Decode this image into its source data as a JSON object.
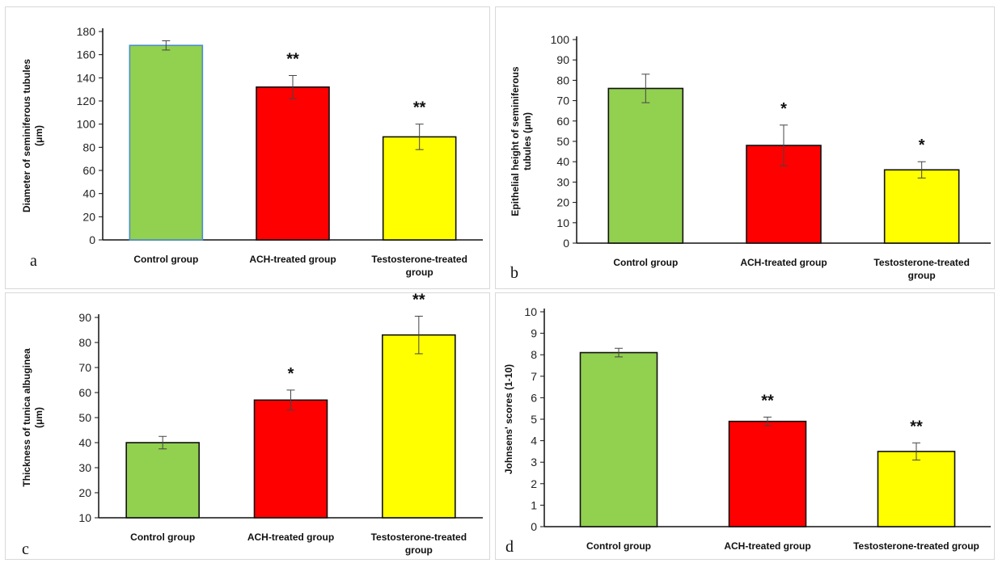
{
  "chart_data": [
    {
      "type": "bar",
      "panel_label": "a",
      "ylabel": [
        "Diameter of seminiferous tubules",
        "(μm)"
      ],
      "categories": [
        [
          "Control group"
        ],
        [
          "ACH-treated group"
        ],
        [
          "Testosterone-treated",
          "group"
        ]
      ],
      "values": [
        168,
        132,
        89
      ],
      "errors": [
        4,
        10,
        11
      ],
      "significance": [
        "",
        "**",
        "**"
      ],
      "colors": [
        "#92d050",
        "#ff0000",
        "#ffff00"
      ],
      "bar_border_colors": [
        "#4a8ec8",
        "#111111",
        "#111111"
      ],
      "ylim": [
        0,
        180
      ],
      "yticks": [
        0,
        20,
        40,
        60,
        80,
        100,
        120,
        140,
        160,
        180
      ],
      "grid": false
    },
    {
      "type": "bar",
      "panel_label": "b",
      "ylabel": [
        "Epithelial height of seminiferous",
        "tubules (μm)"
      ],
      "categories": [
        [
          "Control group"
        ],
        [
          "ACH-treated group"
        ],
        [
          "Testosterone-treated",
          "group"
        ]
      ],
      "values": [
        76,
        48,
        36
      ],
      "errors": [
        7,
        10,
        4
      ],
      "significance": [
        "",
        "*",
        "*"
      ],
      "colors": [
        "#92d050",
        "#ff0000",
        "#ffff00"
      ],
      "bar_border_colors": [
        "#111111",
        "#111111",
        "#111111"
      ],
      "ylim": [
        0,
        100
      ],
      "yticks": [
        0,
        10,
        20,
        30,
        40,
        50,
        60,
        70,
        80,
        90,
        100
      ],
      "grid": false
    },
    {
      "type": "bar",
      "panel_label": "c",
      "ylabel": [
        "Thickness of tunica albuginea",
        "(μm)"
      ],
      "categories": [
        [
          "Control group"
        ],
        [
          "ACH-treated group"
        ],
        [
          "Testosterone-treated",
          "group"
        ]
      ],
      "values": [
        40,
        57,
        83
      ],
      "errors": [
        2.5,
        4,
        7.5
      ],
      "significance": [
        "",
        "*",
        "**"
      ],
      "colors": [
        "#92d050",
        "#ff0000",
        "#ffff00"
      ],
      "bar_border_colors": [
        "#111111",
        "#111111",
        "#111111"
      ],
      "ylim": [
        10,
        90
      ],
      "yticks": [
        10,
        20,
        30,
        40,
        50,
        60,
        70,
        80,
        90
      ],
      "grid": false
    },
    {
      "type": "bar",
      "panel_label": "d",
      "ylabel": [
        "Johnsens' scores (1-10)"
      ],
      "categories": [
        [
          "Control group"
        ],
        [
          "ACH-treated group"
        ],
        [
          "Testosterone-treated group"
        ]
      ],
      "values": [
        8.1,
        4.9,
        3.5
      ],
      "errors": [
        0.2,
        0.2,
        0.4
      ],
      "significance": [
        "",
        "**",
        "**"
      ],
      "colors": [
        "#92d050",
        "#ff0000",
        "#ffff00"
      ],
      "bar_border_colors": [
        "#111111",
        "#111111",
        "#111111"
      ],
      "ylim": [
        0,
        10
      ],
      "yticks": [
        0,
        1,
        2,
        3,
        4,
        5,
        6,
        7,
        8,
        9,
        10
      ],
      "grid": false
    }
  ]
}
